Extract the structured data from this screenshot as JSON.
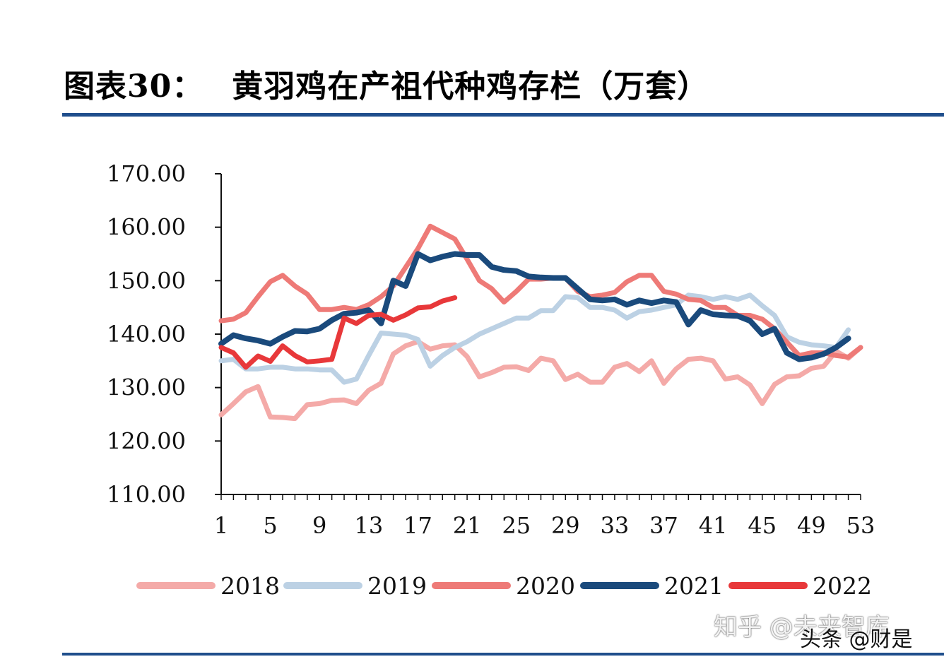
{
  "figure": {
    "label": "图表30：",
    "title": "黄羽鸡在产祖代种鸡存栏（万套）"
  },
  "watermarks": {
    "zhihu": "知乎 @未来智库",
    "toutiao": "头条 @财是"
  },
  "chart_data": {
    "type": "line",
    "title": "黄羽鸡在产祖代种鸡存栏（万套）",
    "xlabel": "",
    "ylabel": "",
    "xlim": [
      1,
      53
    ],
    "ylim": [
      110,
      170
    ],
    "y_ticks": [
      "110.00",
      "120.00",
      "130.00",
      "140.00",
      "150.00",
      "160.00",
      "170.00"
    ],
    "y_tick_values": [
      110,
      120,
      130,
      140,
      150,
      160,
      170
    ],
    "x_ticks": [
      "1",
      "5",
      "9",
      "13",
      "17",
      "21",
      "25",
      "29",
      "33",
      "37",
      "41",
      "45",
      "49",
      "53"
    ],
    "x_tick_values": [
      1,
      5,
      9,
      13,
      17,
      21,
      25,
      29,
      33,
      37,
      41,
      45,
      49,
      53
    ],
    "legend_position": "bottom",
    "series": [
      {
        "name": "2018",
        "color": "#f4aaa8",
        "values": [
          124.9,
          127.0,
          129.2,
          130.2,
          124.5,
          124.4,
          124.2,
          126.8,
          127.0,
          127.6,
          127.7,
          127.0,
          129.5,
          130.8,
          136.3,
          137.8,
          138.6,
          137.2,
          137.8,
          138.0,
          135.8,
          132.0,
          132.8,
          133.8,
          133.9,
          133.2,
          135.5,
          135.0,
          131.5,
          132.5,
          131.0,
          131.0,
          133.8,
          134.5,
          133.0,
          135.0,
          130.8,
          133.5,
          135.3,
          135.5,
          135.0,
          131.6,
          132.0,
          130.5,
          127.0,
          130.6,
          132.0,
          132.2,
          133.6,
          134.0,
          136.8,
          135.5,
          137.5
        ]
      },
      {
        "name": "2019",
        "color": "#bcd1e4",
        "values": [
          135.0,
          135.3,
          133.5,
          133.5,
          133.8,
          133.8,
          133.5,
          133.5,
          133.3,
          133.3,
          131.0,
          131.6,
          136.0,
          140.2,
          140.0,
          139.8,
          139.0,
          134.0,
          136.0,
          137.5,
          138.6,
          140.0,
          141.0,
          142.0,
          143.0,
          143.0,
          144.4,
          144.4,
          147.0,
          146.8,
          145.0,
          145.0,
          144.5,
          143.0,
          144.2,
          144.5,
          145.0,
          145.5,
          147.3,
          147.0,
          146.5,
          147.0,
          146.5,
          147.3,
          145.3,
          143.5,
          139.5,
          138.5,
          138.0,
          137.8,
          137.5,
          140.8,
          null
        ]
      },
      {
        "name": "2020",
        "color": "#ee7a77",
        "values": [
          142.5,
          142.8,
          144.0,
          147.0,
          149.8,
          151.0,
          149.0,
          147.5,
          144.6,
          144.6,
          145.0,
          144.6,
          145.5,
          147.0,
          149.0,
          152.5,
          156.0,
          160.2,
          159.0,
          157.8,
          154.0,
          150.0,
          148.5,
          146.0,
          148.0,
          150.3,
          150.3,
          150.5,
          150.5,
          148.0,
          147.0,
          147.3,
          147.8,
          149.8,
          151.0,
          151.0,
          148.0,
          147.5,
          146.5,
          146.3,
          145.0,
          145.0,
          143.5,
          143.5,
          142.8,
          141.0,
          138.5,
          136.0,
          136.5,
          136.5,
          136.0,
          135.7,
          137.5
        ]
      },
      {
        "name": "2021",
        "color": "#1a4a7c",
        "values": [
          138.2,
          139.8,
          139.2,
          138.8,
          138.2,
          139.5,
          140.6,
          140.5,
          141.0,
          142.6,
          143.8,
          144.0,
          144.5,
          142.0,
          150.0,
          149.0,
          155.0,
          153.8,
          154.5,
          155.0,
          154.8,
          154.8,
          152.6,
          152.0,
          151.8,
          150.8,
          150.6,
          150.5,
          150.5,
          148.5,
          146.5,
          146.3,
          146.5,
          145.5,
          146.3,
          145.8,
          146.3,
          146.0,
          141.8,
          144.5,
          143.7,
          143.5,
          143.4,
          142.5,
          140.0,
          141.0,
          136.5,
          135.3,
          135.6,
          136.3,
          137.5,
          139.2,
          null
        ]
      },
      {
        "name": "2022",
        "color": "#e8383a",
        "values": [
          137.5,
          136.5,
          133.8,
          135.9,
          134.9,
          137.8,
          136.0,
          134.8,
          135.0,
          135.3,
          143.0,
          142.0,
          143.5,
          143.7,
          142.6,
          143.6,
          144.9,
          145.1,
          146.2,
          146.8,
          null,
          null,
          null,
          null,
          null,
          null,
          null,
          null,
          null,
          null,
          null,
          null,
          null,
          null,
          null,
          null,
          null,
          null,
          null,
          null,
          null,
          null,
          null,
          null,
          null,
          null,
          null,
          null,
          null,
          null,
          null,
          null,
          null
        ]
      }
    ]
  }
}
